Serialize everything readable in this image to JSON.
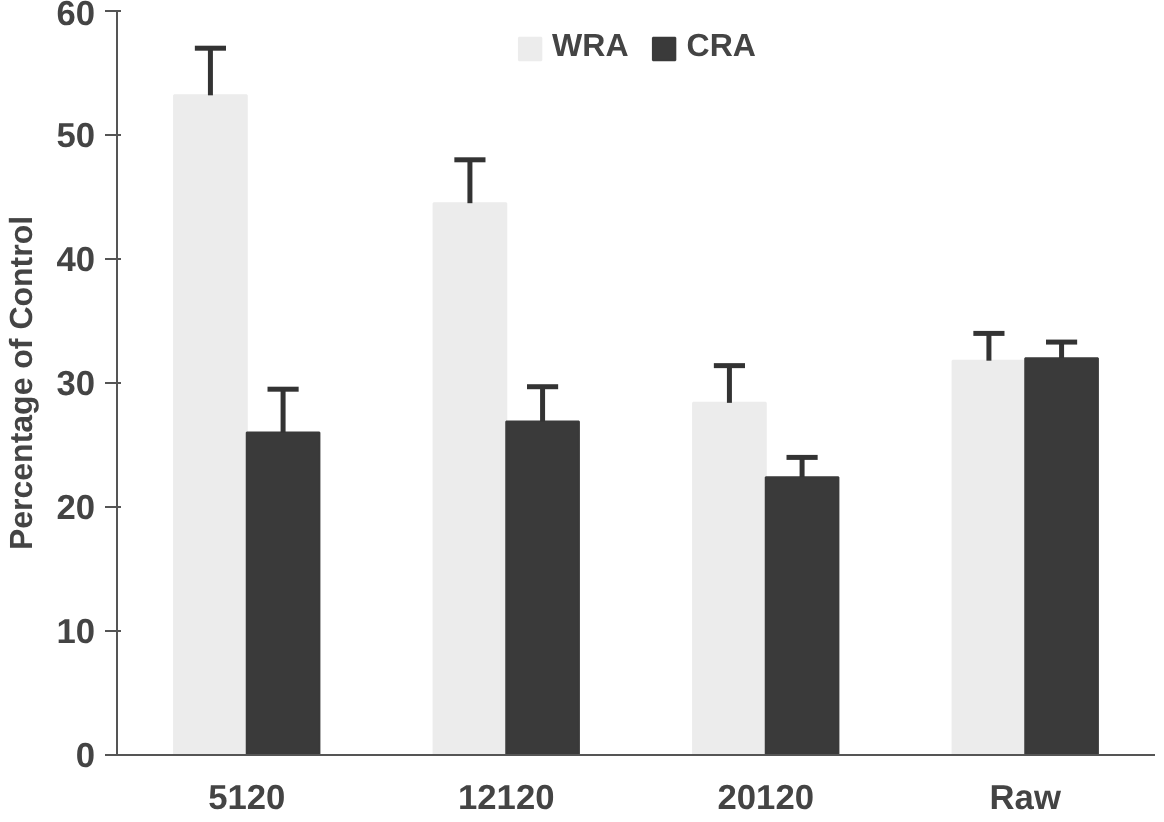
{
  "chart_data": {
    "type": "bar",
    "ylabel": "Percentage of Control",
    "categories": [
      "5120",
      "12120",
      "20120",
      "Raw"
    ],
    "series": [
      {
        "name": "WRA",
        "color": "#ececec",
        "values": [
          53.2,
          44.5,
          28.4,
          31.8
        ],
        "errors": [
          [
            53.2,
            57
          ],
          [
            44.5,
            48
          ],
          [
            28.4,
            31.4
          ],
          [
            31.8,
            34
          ]
        ]
      },
      {
        "name": "CRA",
        "color": "#3a3a3a",
        "values": [
          26,
          26.9,
          22.4,
          32
        ],
        "errors": [
          [
            26,
            29.5
          ],
          [
            26.9,
            29.7
          ],
          [
            22.4,
            24
          ],
          [
            32,
            33.3
          ]
        ]
      }
    ],
    "ylim": [
      0,
      60
    ],
    "yticks": [
      0,
      10,
      20,
      30,
      40,
      50,
      60
    ],
    "grid": false,
    "legend": "top"
  }
}
